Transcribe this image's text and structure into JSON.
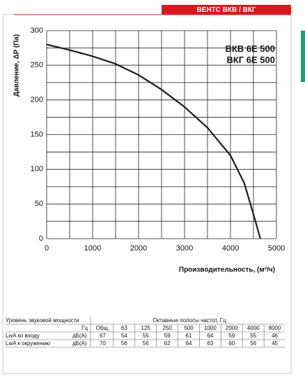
{
  "header": {
    "tag": "ВЕНТС ВКВ / ВКГ"
  },
  "chart_data": {
    "type": "line",
    "ylabel": "Давление, ΔP (Па)",
    "xlabel": "Производительность, (м³/ч)",
    "annotations": [
      "ВКВ 6Е 500",
      "ВКГ 6Е 500"
    ],
    "x": [
      0,
      500,
      1000,
      1500,
      2000,
      2500,
      3000,
      3500,
      4000,
      4300,
      4500,
      4650
    ],
    "values": [
      280,
      272,
      263,
      252,
      236,
      215,
      190,
      160,
      120,
      80,
      35,
      0
    ],
    "color": "#1a1a1a",
    "xlim": [
      0,
      5000
    ],
    "ylim": [
      0,
      300
    ],
    "xticks": [
      0,
      1000,
      2000,
      3000,
      4000,
      5000
    ],
    "yticks": [
      0,
      50,
      100,
      150,
      200,
      250,
      300
    ],
    "xgrid": [
      0,
      500,
      1000,
      1500,
      2000,
      2500,
      3000,
      3500,
      4000,
      4500,
      5000
    ],
    "ygrid": [
      0,
      25,
      50,
      75,
      100,
      125,
      150,
      175,
      200,
      225,
      250,
      275,
      300
    ],
    "grid": true
  },
  "table": {
    "title": "Уровень звуковой мощности",
    "bands_title": "Октавные полосы частот, Гц",
    "header": [
      "Гц",
      "Общ.",
      63,
      125,
      250,
      500,
      1000,
      2000,
      4000,
      8000
    ],
    "rows": [
      [
        "LwA ко входу",
        "дБ(А)",
        67,
        54,
        55,
        59,
        61,
        64,
        59,
        55,
        46
      ],
      [
        "LwA к окружению",
        "дБ(А)",
        70,
        56,
        56,
        62,
        64,
        63,
        60,
        56,
        45
      ]
    ]
  }
}
